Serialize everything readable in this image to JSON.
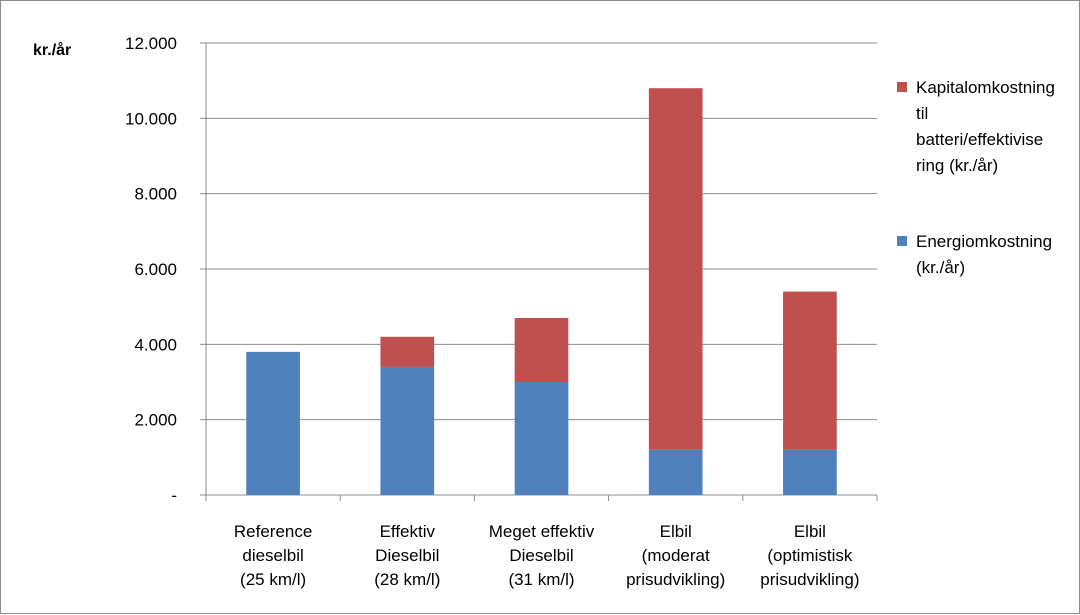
{
  "chart_data": {
    "type": "bar",
    "stacked": true,
    "ylabel": "kr./år",
    "ylim": [
      0,
      12000
    ],
    "yticks": [
      0,
      2000,
      4000,
      6000,
      8000,
      10000,
      12000
    ],
    "ytick_labels": [
      "-",
      "2.000",
      "4.000",
      "6.000",
      "8.000",
      "10.000",
      "12.000"
    ],
    "grid": true,
    "legend_position": "right",
    "categories": [
      [
        "Reference",
        "dieselbil",
        "(25 km/l)"
      ],
      [
        "Effektiv",
        "Dieselbil",
        "(28 km/l)"
      ],
      [
        "Meget effektiv",
        "Dieselbil",
        "(31 km/l)"
      ],
      [
        "Elbil",
        "(moderat",
        "prisudvikling)"
      ],
      [
        "Elbil",
        "(optimistisk",
        "prisudvikling)"
      ]
    ],
    "series": [
      {
        "name": "Energiomkostning (kr./år)",
        "legend_lines": [
          "Energiomkostning",
          "(kr./år)"
        ],
        "color": "#4f81bd",
        "values": [
          3800,
          3400,
          3000,
          1200,
          1200
        ]
      },
      {
        "name": "Kapitalomkostning til batteri/effektivisering (kr./år)",
        "legend_lines": [
          "Kapitalomkostning",
          "til",
          "batteri/effektivise",
          "ring (kr./år)"
        ],
        "color": "#c0504d",
        "values": [
          0,
          800,
          1700,
          9600,
          4200
        ]
      }
    ]
  }
}
